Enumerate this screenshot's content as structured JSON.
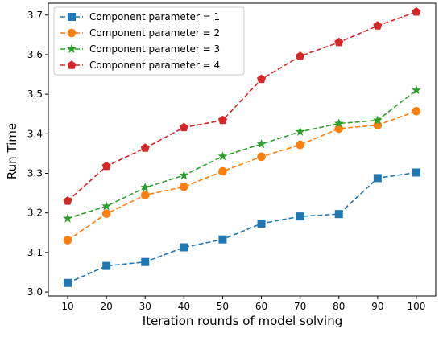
{
  "chart_data": {
    "type": "line",
    "title": "",
    "xlabel": "Iteration rounds of model solving",
    "ylabel": "Run Time",
    "x": [
      10,
      20,
      30,
      40,
      50,
      60,
      70,
      80,
      90,
      100
    ],
    "xlim": [
      5,
      105
    ],
    "ylim": [
      2.99,
      3.73
    ],
    "xticks": [
      10,
      20,
      30,
      40,
      50,
      60,
      70,
      80,
      90,
      100
    ],
    "yticks": [
      3.0,
      3.1,
      3.2,
      3.3,
      3.4,
      3.5,
      3.6,
      3.7
    ],
    "grid": false,
    "legend_position": "upper-left",
    "series": [
      {
        "name": "Component parameter = 1",
        "color": "#1f77b4",
        "marker": "square",
        "values": [
          3.023,
          3.066,
          3.076,
          3.113,
          3.133,
          3.173,
          3.191,
          3.197,
          3.288,
          3.302
        ]
      },
      {
        "name": "Component parameter = 2",
        "color": "#ff7f0e",
        "marker": "circle",
        "values": [
          3.131,
          3.198,
          3.245,
          3.266,
          3.305,
          3.342,
          3.372,
          3.413,
          3.422,
          3.457
        ]
      },
      {
        "name": "Component parameter = 3",
        "color": "#2ca02c",
        "marker": "star",
        "values": [
          3.186,
          3.217,
          3.264,
          3.295,
          3.343,
          3.374,
          3.405,
          3.426,
          3.434,
          3.51
        ]
      },
      {
        "name": "Component parameter = 4",
        "color": "#d62728",
        "marker": "pentagon",
        "values": [
          3.23,
          3.318,
          3.364,
          3.416,
          3.434,
          3.538,
          3.596,
          3.631,
          3.673,
          3.708
        ]
      }
    ]
  }
}
